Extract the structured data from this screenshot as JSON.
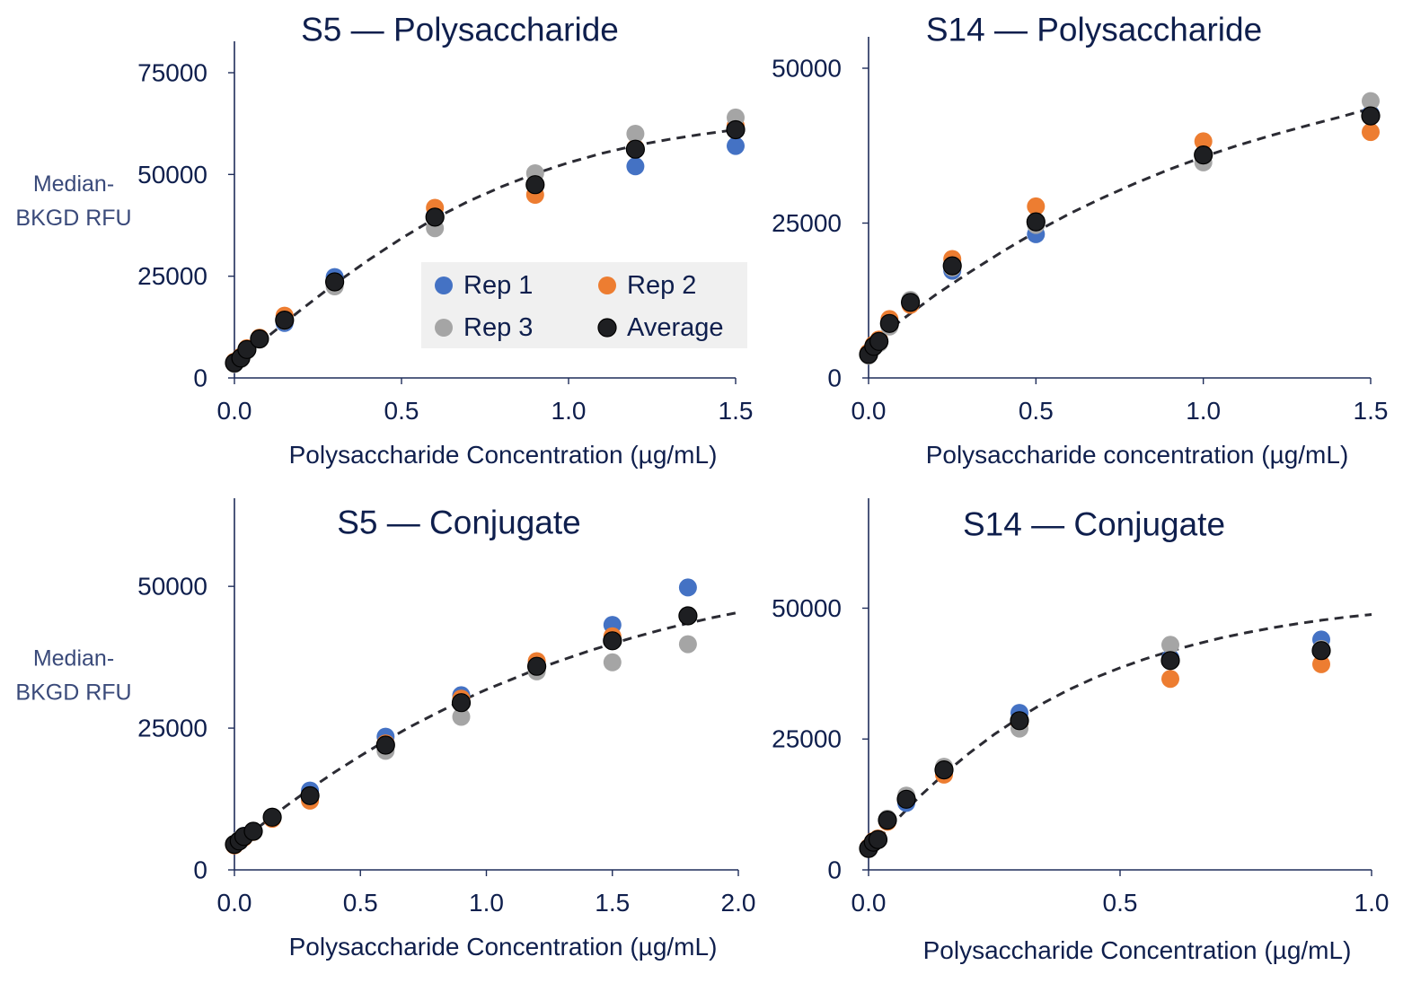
{
  "colors": {
    "rep1": "#4472c4",
    "rep2": "#ed7d31",
    "rep3": "#a5a5a5",
    "average": "#1e1f22",
    "text": "#0f1f4d",
    "ylabel_text": "#3a4a7a",
    "fit_line": "#2b2b33",
    "legend_bg": "#f0f0f0"
  },
  "legend": {
    "placement": "inside top-left panel, right-center",
    "items": [
      {
        "key": "rep1",
        "label": "Rep 1"
      },
      {
        "key": "rep2",
        "label": "Rep 2"
      },
      {
        "key": "rep3",
        "label": "Rep 3"
      },
      {
        "key": "average",
        "label": "Average"
      }
    ]
  },
  "chart_data": [
    {
      "type": "scatter",
      "title": "S5 — Polysaccharide",
      "xlabel": "Polysaccharide Concentration (µg/mL)",
      "ylabel": "Median-BKGD RFU",
      "ylabel_lines": [
        "Median-",
        "BKGD RFU"
      ],
      "xlim": [
        0,
        1.5
      ],
      "ylim": [
        0,
        75000
      ],
      "xticks": [
        "0.0",
        "0.5",
        "1.0",
        "1.5"
      ],
      "yticks": [
        "0",
        "25000",
        "50000",
        "75000"
      ],
      "grid": false,
      "series": [
        {
          "name": "Rep 1",
          "x": [
            0,
            0.019,
            0.0375,
            0.075,
            0.15,
            0.3,
            0.6,
            0.9,
            1.2,
            1.5
          ],
          "y": [
            3600,
            4800,
            6900,
            9600,
            13500,
            24800,
            40000,
            47500,
            52000,
            57000
          ]
        },
        {
          "name": "Rep 2",
          "x": [
            0,
            0.019,
            0.0375,
            0.075,
            0.15,
            0.3,
            0.6,
            0.9,
            1.2,
            1.5
          ],
          "y": [
            4000,
            5200,
            7300,
            9900,
            15300,
            23500,
            41800,
            45000,
            56500,
            62000
          ]
        },
        {
          "name": "Rep 3",
          "x": [
            0,
            0.019,
            0.0375,
            0.075,
            0.15,
            0.3,
            0.6,
            0.9,
            1.2,
            1.5
          ],
          "y": [
            3400,
            4600,
            6700,
            9400,
            14000,
            22500,
            36800,
            50300,
            60000,
            64000
          ]
        },
        {
          "name": "Average",
          "x": [
            0,
            0.019,
            0.0375,
            0.075,
            0.15,
            0.3,
            0.6,
            0.9,
            1.2,
            1.5
          ],
          "y": [
            3700,
            4900,
            7000,
            9600,
            14200,
            23600,
            39500,
            47500,
            56200,
            61000
          ]
        }
      ],
      "fit": {
        "style": "dashed",
        "x": [
          0,
          0.1,
          0.2,
          0.3,
          0.4,
          0.5,
          0.6,
          0.7,
          0.8,
          0.9,
          1.0,
          1.1,
          1.2,
          1.3,
          1.4,
          1.5
        ],
        "y": [
          3500,
          10200,
          16800,
          23100,
          28900,
          34300,
          39200,
          43400,
          47000,
          50200,
          52900,
          55200,
          57100,
          58600,
          59900,
          61000
        ]
      }
    },
    {
      "type": "scatter",
      "title": "S14 — Polysaccharide",
      "xlabel": "Polysaccharide concentration (µg/mL)",
      "ylabel": "",
      "xlim": [
        0,
        1.5
      ],
      "ylim": [
        0,
        50000
      ],
      "xticks": [
        "0.0",
        "0.5",
        "1.0",
        "1.5"
      ],
      "yticks": [
        "0",
        "25000",
        "50000"
      ],
      "grid": false,
      "series": [
        {
          "name": "Rep 1",
          "x": [
            0,
            0.0156,
            0.03125,
            0.0625,
            0.125,
            0.25,
            0.5,
            1.0,
            1.5
          ],
          "y": [
            3800,
            5100,
            5800,
            8600,
            12000,
            17300,
            23200,
            36000,
            42600
          ]
        },
        {
          "name": "Rep 2",
          "x": [
            0,
            0.0156,
            0.03125,
            0.0625,
            0.125,
            0.25,
            0.5,
            1.0,
            1.5
          ],
          "y": [
            4100,
            5400,
            6200,
            9500,
            11800,
            19200,
            27700,
            38200,
            39700
          ]
        },
        {
          "name": "Rep 3",
          "x": [
            0,
            0.0156,
            0.03125,
            0.0625,
            0.125,
            0.25,
            0.5,
            1.0,
            1.5
          ],
          "y": [
            3600,
            4900,
            5600,
            8300,
            12600,
            17800,
            24700,
            34800,
            44700
          ]
        },
        {
          "name": "Average",
          "x": [
            0,
            0.0156,
            0.03125,
            0.0625,
            0.125,
            0.25,
            0.5,
            1.0,
            1.5
          ],
          "y": [
            3800,
            5100,
            5900,
            8800,
            12200,
            18100,
            25200,
            36000,
            42300
          ]
        }
      ],
      "fit": {
        "style": "dashed",
        "x": [
          0,
          0.1,
          0.2,
          0.3,
          0.4,
          0.5,
          0.6,
          0.7,
          0.8,
          0.9,
          1.0,
          1.1,
          1.2,
          1.3,
          1.4,
          1.5
        ],
        "y": [
          5200,
          9400,
          13400,
          17000,
          20400,
          23600,
          26500,
          29100,
          31500,
          33700,
          35700,
          37500,
          39100,
          40600,
          42000,
          43500
        ]
      }
    },
    {
      "type": "scatter",
      "title": "S5 — Conjugate",
      "xlabel": "Polysaccharide Concentration (µg/mL)",
      "ylabel": "Median-BKGD RFU",
      "ylabel_lines": [
        "Median-",
        "BKGD RFU"
      ],
      "xlim": [
        0,
        2.0
      ],
      "ylim": [
        0,
        60000
      ],
      "xticks": [
        "0.0",
        "0.5",
        "1.0",
        "1.5",
        "2.0"
      ],
      "yticks": [
        "0",
        "25000",
        "50000"
      ],
      "grid": false,
      "series": [
        {
          "name": "Rep 1",
          "x": [
            0,
            0.019,
            0.0375,
            0.075,
            0.15,
            0.3,
            0.6,
            0.9,
            1.2,
            1.5,
            1.8
          ],
          "y": [
            4500,
            5200,
            6000,
            6800,
            9200,
            14000,
            23500,
            30800,
            36000,
            43200,
            49800
          ]
        },
        {
          "name": "Rep 2",
          "x": [
            0,
            0.019,
            0.0375,
            0.075,
            0.15,
            0.3,
            0.6,
            0.9,
            1.2,
            1.5,
            1.8
          ],
          "y": [
            4300,
            5000,
            5700,
            6700,
            9000,
            12200,
            22300,
            30200,
            36800,
            41200,
            44800
          ]
        },
        {
          "name": "Rep 3",
          "x": [
            0,
            0.019,
            0.0375,
            0.075,
            0.15,
            0.3,
            0.6,
            0.9,
            1.2,
            1.5,
            1.8
          ],
          "y": [
            4600,
            5300,
            5900,
            6900,
            9400,
            13000,
            21000,
            27000,
            35000,
            36600,
            39800
          ]
        },
        {
          "name": "Average",
          "x": [
            0,
            0.019,
            0.0375,
            0.075,
            0.15,
            0.3,
            0.6,
            0.9,
            1.2,
            1.5,
            1.8
          ],
          "y": [
            4500,
            5100,
            5900,
            6800,
            9300,
            13100,
            22000,
            29500,
            35900,
            40400,
            44800
          ]
        }
      ],
      "fit": {
        "style": "dashed",
        "x": [
          0,
          0.1,
          0.2,
          0.3,
          0.4,
          0.5,
          0.6,
          0.7,
          0.8,
          0.9,
          1.0,
          1.1,
          1.2,
          1.3,
          1.4,
          1.5,
          1.6,
          1.7,
          1.8,
          1.9,
          2.0
        ],
        "y": [
          4200,
          7700,
          11100,
          14300,
          17300,
          20100,
          22800,
          25300,
          27600,
          29800,
          31800,
          33600,
          35400,
          37000,
          38500,
          39900,
          41200,
          42400,
          43500,
          44500,
          45400
        ]
      }
    },
    {
      "type": "scatter",
      "title": "S14 — Conjugate",
      "xlabel": "Polysaccharide Concentration (µg/mL)",
      "ylabel": "",
      "xlim": [
        0,
        1.0
      ],
      "ylim": [
        0,
        65000
      ],
      "xticks": [
        "0.0",
        "0.5",
        "1.0"
      ],
      "yticks": [
        "0",
        "25000",
        "50000"
      ],
      "grid": false,
      "series": [
        {
          "name": "Rep 1",
          "x": [
            0,
            0.0094,
            0.01875,
            0.0375,
            0.075,
            0.15,
            0.3,
            0.6,
            0.9
          ],
          "y": [
            4100,
            5300,
            5800,
            9600,
            12800,
            19300,
            30000,
            40500,
            44000
          ]
        },
        {
          "name": "Rep 2",
          "x": [
            0,
            0.0094,
            0.01875,
            0.0375,
            0.075,
            0.15,
            0.3,
            0.6,
            0.9
          ],
          "y": [
            4300,
            5500,
            6000,
            9200,
            13600,
            18200,
            28000,
            36500,
            39300
          ]
        },
        {
          "name": "Rep 3",
          "x": [
            0,
            0.0094,
            0.01875,
            0.0375,
            0.075,
            0.15,
            0.3,
            0.6,
            0.9
          ],
          "y": [
            4000,
            5100,
            5700,
            9800,
            14200,
            19700,
            27000,
            43000,
            42200
          ]
        },
        {
          "name": "Average",
          "x": [
            0,
            0.0094,
            0.01875,
            0.0375,
            0.075,
            0.15,
            0.3,
            0.6,
            0.9
          ],
          "y": [
            4100,
            5300,
            5800,
            9500,
            13500,
            19100,
            28500,
            40000,
            41900
          ]
        }
      ],
      "fit": {
        "style": "dashed",
        "x": [
          0,
          0.05,
          0.1,
          0.15,
          0.2,
          0.25,
          0.3,
          0.35,
          0.4,
          0.45,
          0.5,
          0.55,
          0.6,
          0.65,
          0.7,
          0.75,
          0.8,
          0.85,
          0.9,
          0.95,
          1.0
        ],
        "y": [
          3800,
          9000,
          13900,
          18300,
          22300,
          25900,
          29100,
          32000,
          34500,
          36700,
          38600,
          40300,
          41800,
          43100,
          44300,
          45300,
          46200,
          47000,
          47700,
          48300,
          48800
        ]
      }
    }
  ]
}
